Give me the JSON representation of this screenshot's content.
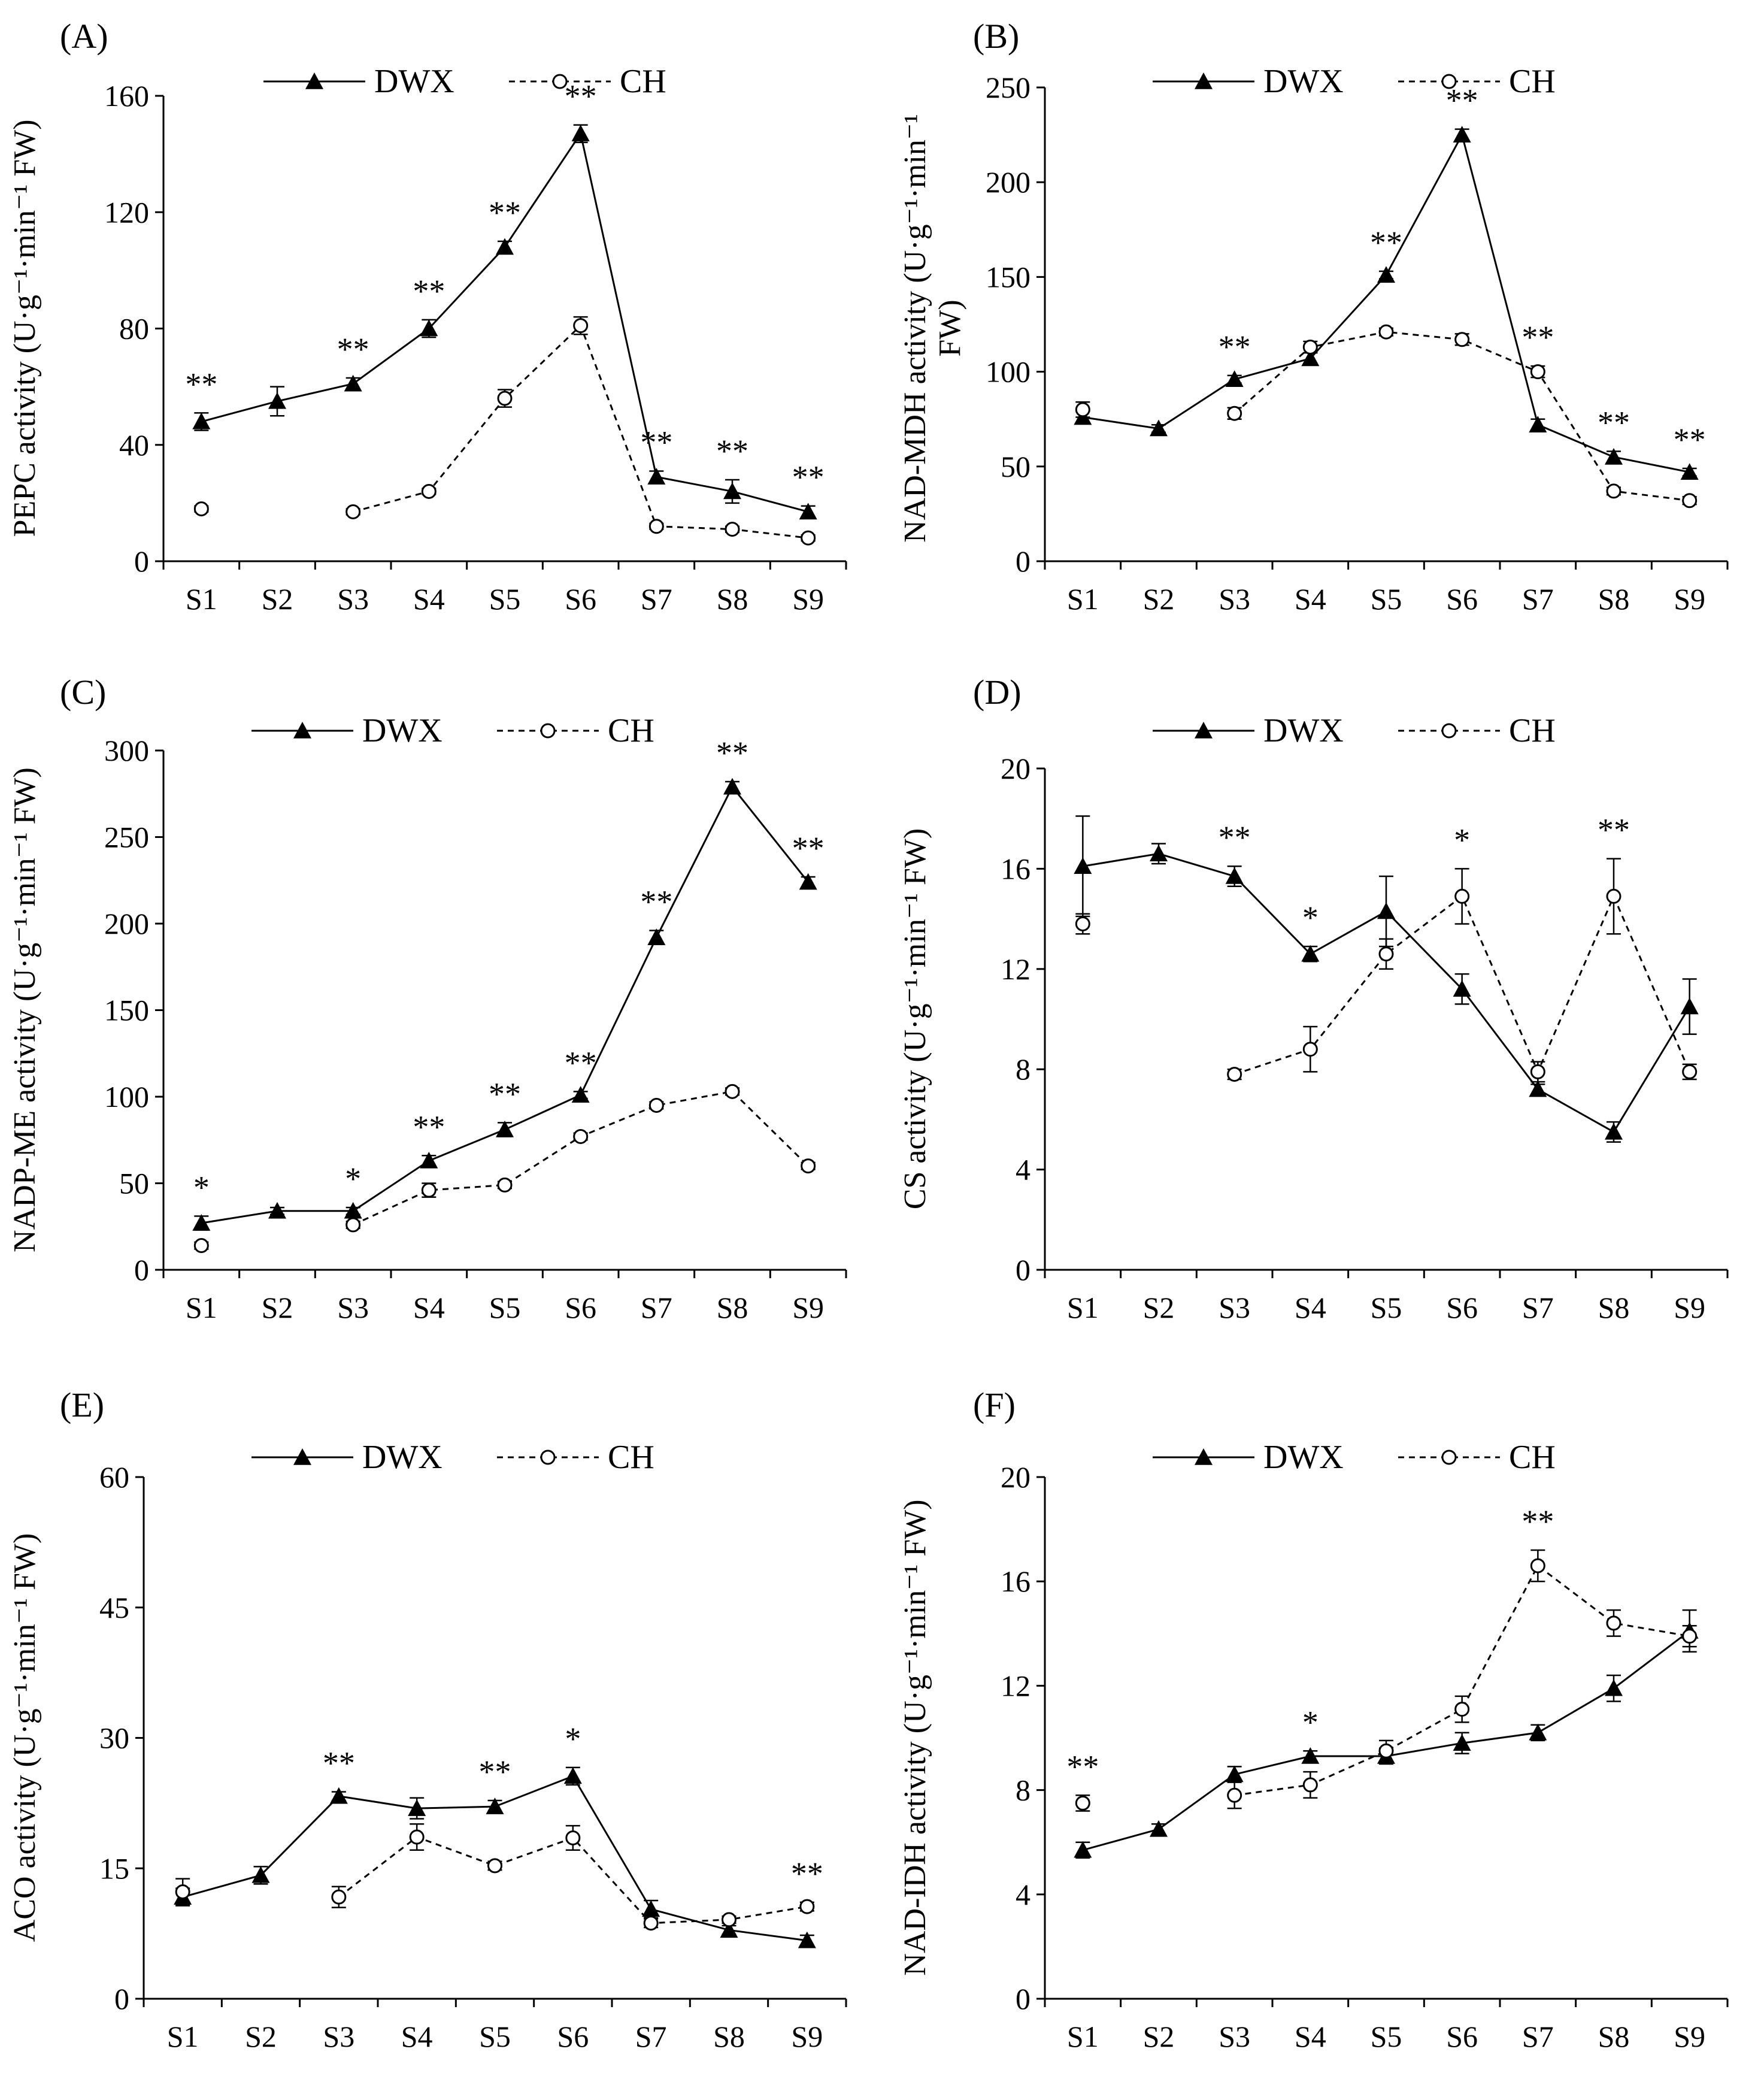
{
  "legend": {
    "dwx": "DWX",
    "ch": "CH"
  },
  "categories": [
    "S1",
    "S2",
    "S3",
    "S4",
    "S5",
    "S6",
    "S7",
    "S8",
    "S9"
  ],
  "chart_data": [
    {
      "id": "A",
      "type": "line",
      "panel_label": "(A)",
      "ylabel": "PEPC activity (U·g⁻¹·min⁻¹ FW)",
      "ylim": [
        0,
        160
      ],
      "yticks": [
        0,
        40,
        80,
        120,
        160
      ],
      "series": [
        {
          "name": "DWX",
          "values": [
            48,
            55,
            61,
            80,
            108,
            147,
            29,
            24,
            17
          ],
          "errors": [
            3,
            5,
            2,
            3,
            2,
            3,
            2,
            4,
            2
          ]
        },
        {
          "name": "CH",
          "values": [
            18,
            null,
            17,
            24,
            56,
            81,
            12,
            11,
            8
          ],
          "errors": [
            1,
            null,
            1,
            1,
            3,
            3,
            1,
            1,
            1
          ]
        }
      ],
      "significance": [
        "**",
        "",
        "**",
        "**",
        "**",
        "**",
        "**",
        "**",
        "**"
      ]
    },
    {
      "id": "B",
      "type": "line",
      "panel_label": "(B)",
      "ylabel": "NAD-MDH activity (U·g⁻¹·min⁻¹ FW)",
      "ylabel_lines": [
        "NAD-MDH activity (U·g⁻¹·min⁻¹",
        "FW)"
      ],
      "ylim": [
        0,
        250
      ],
      "yticks": [
        0,
        50,
        100,
        150,
        200,
        250
      ],
      "series": [
        {
          "name": "DWX",
          "values": [
            76,
            70,
            96,
            107,
            151,
            225,
            72,
            55,
            47
          ],
          "errors": [
            3,
            2,
            2,
            3,
            2,
            3,
            3,
            3,
            2
          ]
        },
        {
          "name": "CH",
          "values": [
            80,
            null,
            78,
            113,
            121,
            117,
            100,
            37,
            32
          ],
          "errors": [
            4,
            null,
            3,
            3,
            2,
            3,
            3,
            2,
            2
          ]
        }
      ],
      "significance": [
        "",
        "",
        "**",
        "",
        "**",
        "**",
        "**",
        "**",
        "**"
      ]
    },
    {
      "id": "C",
      "type": "line",
      "panel_label": "(C)",
      "ylabel": "NADP-ME activity (U·g⁻¹·min⁻¹ FW)",
      "ylim": [
        0,
        300
      ],
      "yticks": [
        0,
        50,
        100,
        150,
        200,
        250,
        300
      ],
      "series": [
        {
          "name": "DWX",
          "values": [
            27,
            34,
            34,
            63,
            81,
            101,
            192,
            279,
            224
          ],
          "errors": [
            4,
            2,
            2,
            3,
            4,
            2,
            4,
            3,
            3
          ]
        },
        {
          "name": "CH",
          "values": [
            14,
            null,
            26,
            46,
            49,
            77,
            95,
            103,
            60
          ],
          "errors": [
            2,
            null,
            2,
            4,
            2,
            2,
            2,
            2,
            2
          ]
        }
      ],
      "significance": [
        "*",
        "",
        "*",
        "**",
        "**",
        "**",
        "**",
        "**",
        "**"
      ]
    },
    {
      "id": "D",
      "type": "line",
      "panel_label": "(D)",
      "ylabel": "CS activity (U·g⁻¹·min⁻¹ FW)",
      "ylim": [
        0,
        20
      ],
      "yticks": [
        0,
        4,
        8,
        12,
        16,
        20
      ],
      "series": [
        {
          "name": "DWX",
          "values": [
            16.1,
            16.6,
            15.7,
            12.6,
            14.3,
            11.2,
            7.2,
            5.5,
            10.5
          ],
          "errors": [
            2.0,
            0.4,
            0.4,
            0.3,
            1.4,
            0.6,
            0.2,
            0.4,
            1.1
          ]
        },
        {
          "name": "CH",
          "values": [
            13.8,
            null,
            7.8,
            8.8,
            12.6,
            14.9,
            7.9,
            14.9,
            7.9
          ],
          "errors": [
            0.4,
            null,
            0.2,
            0.9,
            0.6,
            1.1,
            0.4,
            1.5,
            0.3
          ]
        }
      ],
      "significance": [
        "",
        "",
        "**",
        "*",
        "",
        "*",
        "",
        "**",
        ""
      ]
    },
    {
      "id": "E",
      "type": "line",
      "panel_label": "(E)",
      "ylabel": "ACO activity (U·g⁻¹·min⁻¹ FW)",
      "ylim": [
        0,
        60
      ],
      "yticks": [
        0,
        15,
        30,
        45,
        60
      ],
      "series": [
        {
          "name": "DWX",
          "values": [
            11.7,
            14.2,
            23.3,
            21.9,
            22.1,
            25.6,
            10.3,
            7.9,
            6.7
          ],
          "errors": [
            1.0,
            1.0,
            0.5,
            1.2,
            0.7,
            1.0,
            1.0,
            0.5,
            0.6
          ]
        },
        {
          "name": "CH",
          "values": [
            12.3,
            null,
            11.7,
            18.6,
            15.3,
            18.5,
            8.7,
            9.1,
            10.6
          ],
          "errors": [
            1.5,
            null,
            1.2,
            1.5,
            0.5,
            1.4,
            0.5,
            0.4,
            0.5
          ]
        }
      ],
      "significance": [
        "",
        "",
        "**",
        "",
        "**",
        "*",
        "",
        "",
        "**"
      ]
    },
    {
      "id": "F",
      "type": "line",
      "panel_label": "(F)",
      "ylabel": "NAD-IDH activity (U·g⁻¹·min⁻¹ FW)",
      "ylim": [
        0,
        20
      ],
      "yticks": [
        0,
        4,
        8,
        12,
        16,
        20
      ],
      "series": [
        {
          "name": "DWX",
          "values": [
            5.7,
            6.5,
            8.6,
            9.3,
            9.3,
            9.8,
            10.2,
            11.9,
            14.1
          ],
          "errors": [
            0.3,
            0.2,
            0.3,
            0.2,
            0.3,
            0.4,
            0.3,
            0.5,
            0.8
          ]
        },
        {
          "name": "CH",
          "values": [
            7.5,
            null,
            7.8,
            8.2,
            9.5,
            11.1,
            16.6,
            14.4,
            13.9
          ],
          "errors": [
            0.3,
            null,
            0.5,
            0.5,
            0.4,
            0.5,
            0.6,
            0.5,
            0.4
          ]
        }
      ],
      "significance": [
        "**",
        "",
        "",
        "*",
        "",
        "",
        "**",
        "",
        ""
      ]
    }
  ]
}
